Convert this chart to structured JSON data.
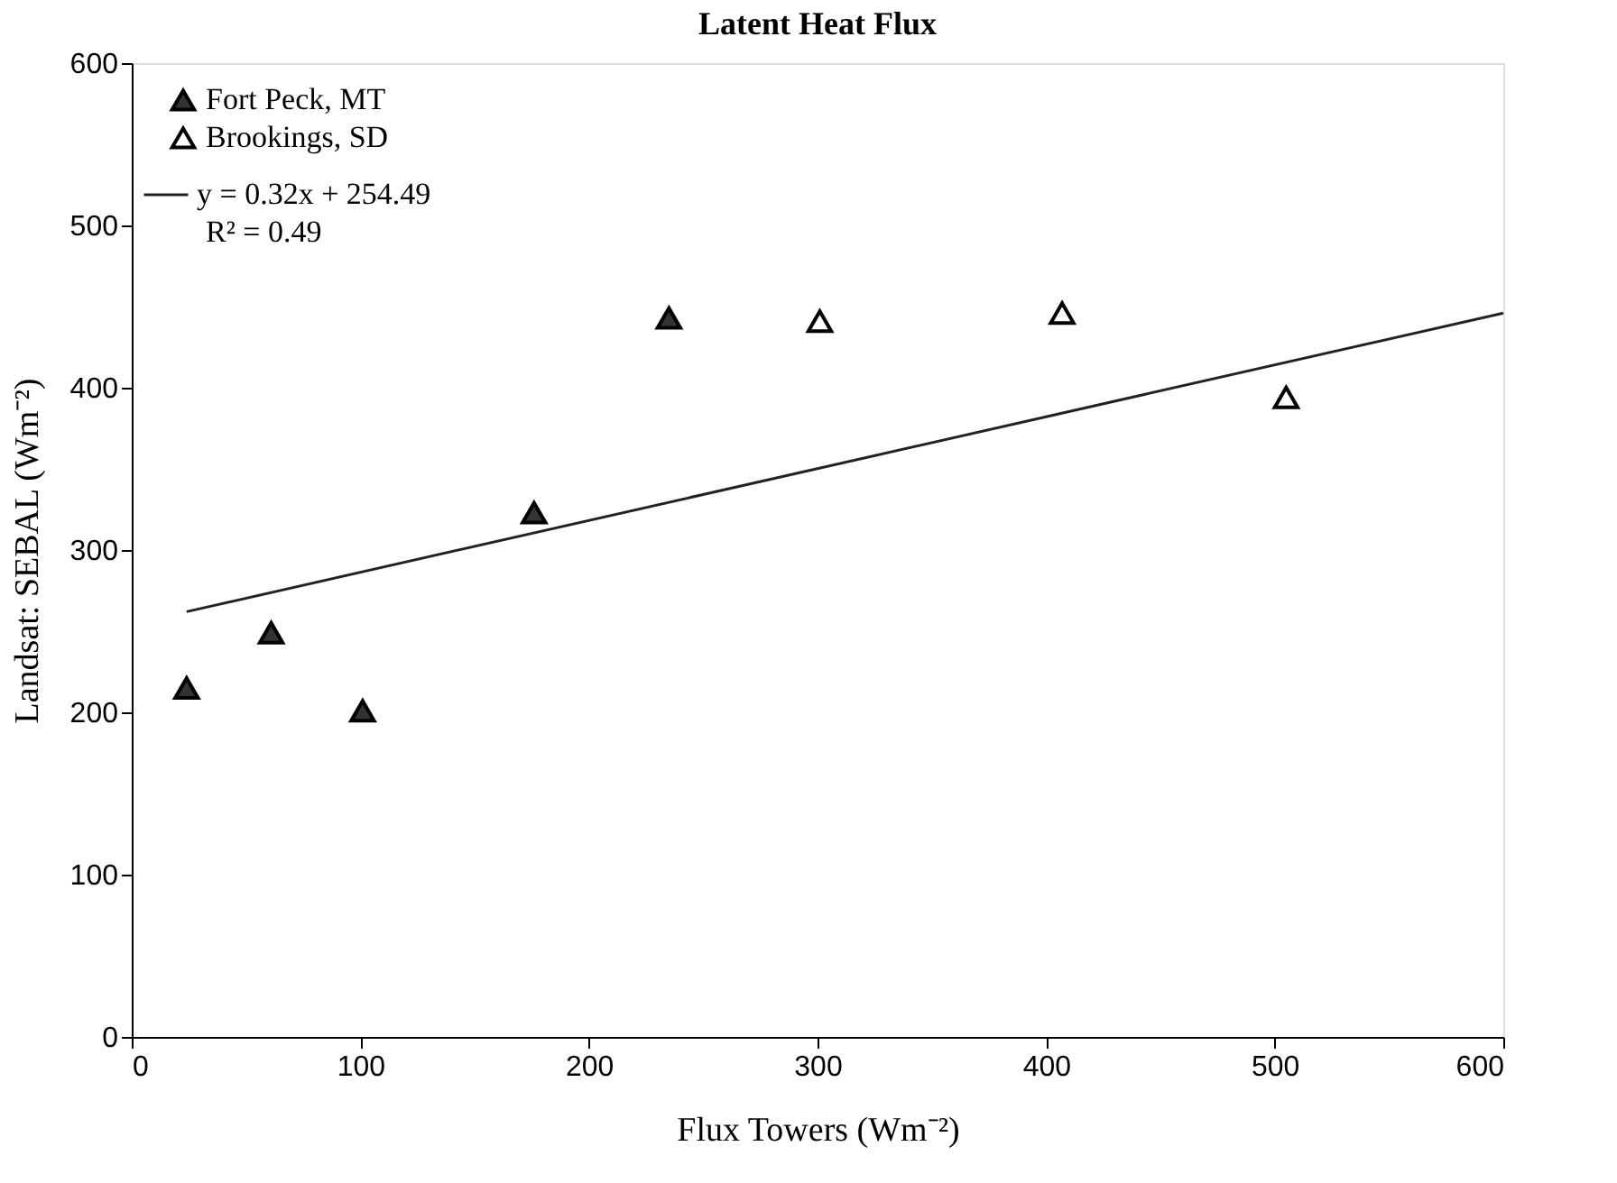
{
  "chart_data": {
    "type": "scatter",
    "title": "Latent Heat Flux",
    "xlabel": "Flux Towers (Wm⁻²)",
    "ylabel": "Landsat: SEBAL (Wm⁻²)",
    "xlim": [
      0,
      600
    ],
    "xticks": [
      0,
      100,
      200,
      300,
      400,
      500,
      600
    ],
    "ylim": [
      0,
      600
    ],
    "yticks": [
      0,
      100,
      200,
      300,
      400,
      500,
      600
    ],
    "series": [
      {
        "name": "Fort Peck, MT",
        "color": "#333333",
        "marker": "triangle",
        "x": [
          24,
          61,
          101,
          176,
          235
        ],
        "values": [
          215,
          249,
          201,
          323,
          443
        ]
      },
      {
        "name": "Brookings, SD",
        "color": "#ffffff",
        "marker": "triangle",
        "x": [
          301,
          407,
          505
        ],
        "values": [
          441,
          446,
          394
        ]
      },
      {
        "name": "y = 0.32x + 254.49",
        "type": "line",
        "color": "#222222",
        "line_style": "solid",
        "x": [
          24,
          600
        ],
        "values": [
          262,
          446
        ]
      }
    ],
    "annotations": [
      "R² = 0.49"
    ],
    "legend": "top left",
    "grid": false
  }
}
